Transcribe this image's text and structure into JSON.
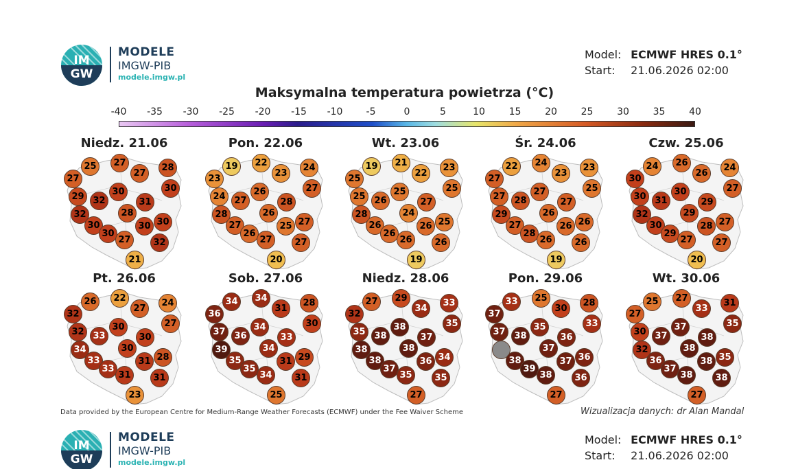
{
  "brand": {
    "name": "MODELE",
    "org": "IMGW-PIB",
    "url": "modele.imgw.pl",
    "logo_text": "IMGW"
  },
  "meta": {
    "model_label": "Model:",
    "model_value": "ECMWF HRES 0.1°",
    "start_label": "Start:",
    "start_value": "21.06.2026 02:00"
  },
  "title": "Maksymalna temperatura powietrza (°C)",
  "colorbar": {
    "ticks": [
      "-40",
      "-35",
      "-30",
      "-25",
      "-20",
      "-15",
      "-10",
      "-5",
      "0",
      "5",
      "10",
      "15",
      "20",
      "25",
      "30",
      "35",
      "40"
    ]
  },
  "days": [
    {
      "label": "Niedz. 21.06",
      "temps": [
        25,
        27,
        28,
        27,
        27,
        30,
        30,
        29,
        32,
        31,
        32,
        28,
        30,
        30,
        30,
        30,
        27,
        32,
        21
      ]
    },
    {
      "label": "Pon. 22.06",
      "temps": [
        19,
        22,
        24,
        23,
        23,
        27,
        26,
        24,
        27,
        28,
        28,
        26,
        25,
        27,
        27,
        26,
        27,
        27,
        20
      ]
    },
    {
      "label": "Wt. 23.06",
      "temps": [
        19,
        21,
        23,
        25,
        22,
        25,
        25,
        25,
        26,
        27,
        28,
        24,
        26,
        25,
        26,
        26,
        26,
        26,
        19
      ]
    },
    {
      "label": "Śr. 24.06",
      "temps": [
        22,
        24,
        23,
        27,
        23,
        25,
        27,
        27,
        28,
        27,
        29,
        26,
        26,
        26,
        27,
        28,
        26,
        26,
        19
      ]
    },
    {
      "label": "Czw. 25.06",
      "temps": [
        24,
        26,
        24,
        30,
        26,
        27,
        30,
        30,
        31,
        29,
        32,
        29,
        28,
        27,
        30,
        29,
        27,
        27,
        20
      ]
    },
    {
      "label": "Pt. 26.06",
      "temps": [
        26,
        22,
        24,
        32,
        27,
        27,
        30,
        32,
        33,
        30,
        34,
        30,
        31,
        28,
        33,
        33,
        31,
        31,
        23
      ]
    },
    {
      "label": "Sob. 27.06",
      "temps": [
        34,
        34,
        28,
        36,
        31,
        30,
        34,
        37,
        36,
        33,
        39,
        34,
        31,
        29,
        35,
        35,
        34,
        31,
        25
      ]
    },
    {
      "label": "Niedz. 28.06",
      "temps": [
        27,
        29,
        33,
        32,
        34,
        35,
        38,
        35,
        38,
        37,
        38,
        38,
        36,
        34,
        38,
        37,
        35,
        35,
        27
      ]
    },
    {
      "label": "Pon. 29.06",
      "temps": [
        33,
        25,
        28,
        37,
        30,
        33,
        35,
        37,
        38,
        36,
        null,
        37,
        37,
        36,
        38,
        39,
        38,
        36,
        27
      ]
    },
    {
      "label": "Wt. 30.06",
      "temps": [
        25,
        27,
        31,
        27,
        33,
        35,
        37,
        30,
        37,
        38,
        32,
        38,
        38,
        35,
        36,
        37,
        38,
        38,
        27
      ]
    }
  ],
  "footnote": "Data provided by the European Centre for Medium-Range Weather Forecasts (ECMWF) under the Fee Waiver Scheme",
  "credit": "Wizualizacja danych: dr Alan Mandal"
}
